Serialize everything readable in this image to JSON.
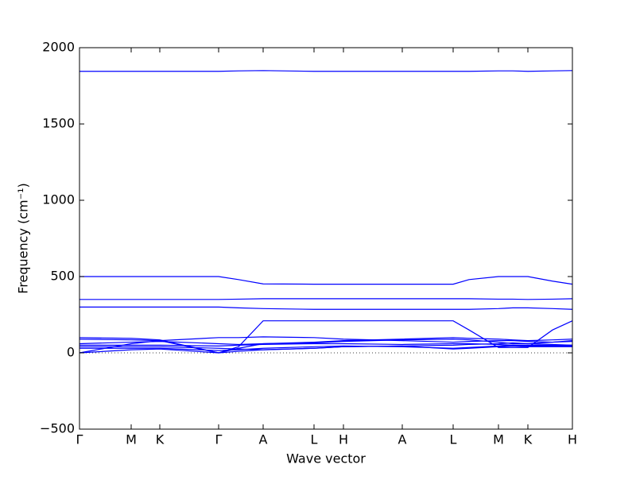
{
  "chart_data": {
    "type": "line",
    "x_label": "Wave vector",
    "y_label": "Frequency (cm⁻¹)",
    "xlim": [
      0,
      620
    ],
    "ylim": [
      -500,
      2000
    ],
    "xticks": [
      {
        "value": 0,
        "label": "Γ"
      },
      {
        "value": 65,
        "label": "M"
      },
      {
        "value": 101,
        "label": "K"
      },
      {
        "value": 175,
        "label": "Γ"
      },
      {
        "value": 231,
        "label": "A"
      },
      {
        "value": 295,
        "label": "L"
      },
      {
        "value": 332,
        "label": "H"
      },
      {
        "value": 406,
        "label": "A"
      },
      {
        "value": 470,
        "label": "L"
      },
      {
        "value": 527,
        "label": "M"
      },
      {
        "value": 564,
        "label": "K"
      },
      {
        "value": 620,
        "label": "H"
      }
    ],
    "yticks": [
      {
        "value": -500,
        "label": "−500"
      },
      0,
      500,
      1000,
      1500,
      2000
    ],
    "zero_line": true,
    "x": [
      0,
      65,
      101,
      175,
      200,
      231,
      295,
      332,
      406,
      470,
      490,
      527,
      545,
      564,
      595,
      620
    ],
    "series": [
      {
        "color": "#0000ff",
        "values": [
          1845,
          1845,
          1845,
          1845,
          1848,
          1850,
          1845,
          1845,
          1845,
          1845,
          1845,
          1848,
          1848,
          1845,
          1848,
          1850
        ]
      },
      {
        "color": "#0000ff",
        "values": [
          500,
          500,
          500,
          500,
          480,
          452,
          450,
          450,
          450,
          450,
          480,
          500,
          500,
          500,
          470,
          450
        ]
      },
      {
        "color": "#0000ff",
        "values": [
          350,
          350,
          350,
          350,
          352,
          355,
          355,
          355,
          355,
          355,
          355,
          352,
          352,
          350,
          352,
          355
        ]
      },
      {
        "color": "#0000ff",
        "values": [
          300,
          300,
          300,
          300,
          295,
          290,
          285,
          285,
          285,
          285,
          285,
          290,
          295,
          295,
          290,
          285
        ]
      },
      {
        "color": "#0000ff",
        "values": [
          100,
          95,
          85,
          0,
          40,
          210,
          210,
          210,
          210,
          210,
          150,
          35,
          35,
          35,
          150,
          210
        ]
      },
      {
        "color": "#0000ff",
        "values": [
          0,
          60,
          80,
          0,
          30,
          60,
          70,
          80,
          90,
          100,
          95,
          90,
          85,
          80,
          85,
          90
        ]
      },
      {
        "color": "#0000ff",
        "values": [
          90,
          85,
          80,
          100,
          100,
          105,
          100,
          90,
          80,
          70,
          75,
          80,
          80,
          75,
          70,
          75
        ]
      },
      {
        "color": "#0000ff",
        "values": [
          60,
          70,
          75,
          60,
          55,
          60,
          65,
          75,
          85,
          90,
          85,
          70,
          60,
          60,
          70,
          80
        ]
      },
      {
        "color": "#0000ff",
        "values": [
          40,
          40,
          40,
          30,
          25,
          20,
          30,
          40,
          45,
          25,
          30,
          40,
          45,
          40,
          40,
          40
        ]
      },
      {
        "color": "#0000ff",
        "values": [
          50,
          50,
          50,
          45,
          50,
          55,
          60,
          60,
          55,
          60,
          60,
          55,
          50,
          50,
          50,
          50
        ]
      },
      {
        "color": "#0000ff",
        "values": [
          30,
          30,
          30,
          15,
          20,
          30,
          40,
          45,
          40,
          30,
          35,
          45,
          50,
          45,
          45,
          45
        ]
      },
      {
        "color": "#0000ff",
        "values": [
          0,
          20,
          25,
          0,
          10,
          20,
          30,
          40,
          45,
          50,
          55,
          60,
          65,
          60,
          55,
          50
        ]
      }
    ]
  }
}
